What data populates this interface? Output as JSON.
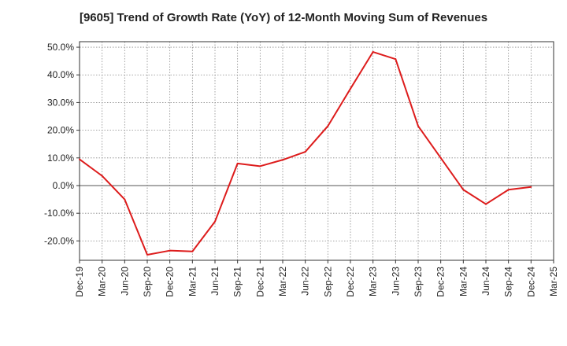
{
  "chart_data": {
    "type": "line",
    "title": "[9605]  Trend of Growth Rate (YoY) of 12-Month Moving Sum of Revenues",
    "xlabel": "",
    "ylabel": "",
    "ylim": [
      -27,
      52
    ],
    "y_ticks": [
      50,
      40,
      30,
      20,
      10,
      0,
      -10,
      -20
    ],
    "y_tick_labels": [
      "50.0%",
      "40.0%",
      "30.0%",
      "20.0%",
      "10.0%",
      "0.0%",
      "-10.0%",
      "-20.0%"
    ],
    "x_tick_labels": [
      "Dec-19",
      "Mar-20",
      "Jun-20",
      "Sep-20",
      "Dec-20",
      "Mar-21",
      "Jun-21",
      "Sep-21",
      "Dec-21",
      "Mar-22",
      "Jun-22",
      "Sep-22",
      "Dec-22",
      "Mar-23",
      "Jun-23",
      "Sep-23",
      "Dec-23",
      "Mar-24",
      "Jun-24",
      "Sep-24",
      "Dec-24",
      "Mar-25"
    ],
    "grid": true,
    "line_color": "#dd1c1c",
    "series": [
      {
        "x": [
          "Dec-19",
          "Mar-20",
          "Jun-20",
          "Sep-20",
          "Dec-20",
          "Mar-21",
          "Jun-21",
          "Sep-21",
          "Dec-21",
          "Mar-22",
          "Jun-22",
          "Sep-22",
          "Dec-22",
          "Mar-23",
          "Jun-23",
          "Sep-23",
          "Dec-23",
          "Mar-24",
          "Jun-24",
          "Sep-24",
          "Dec-24"
        ],
        "values": [
          9.5,
          3.5,
          -5.0,
          -25.0,
          -23.5,
          -23.8,
          -13.0,
          8.0,
          7.0,
          9.3,
          12.2,
          21.5,
          35.0,
          48.3,
          45.7,
          21.5,
          10.0,
          -1.5,
          -6.7,
          -1.5,
          -0.5
        ]
      }
    ]
  }
}
